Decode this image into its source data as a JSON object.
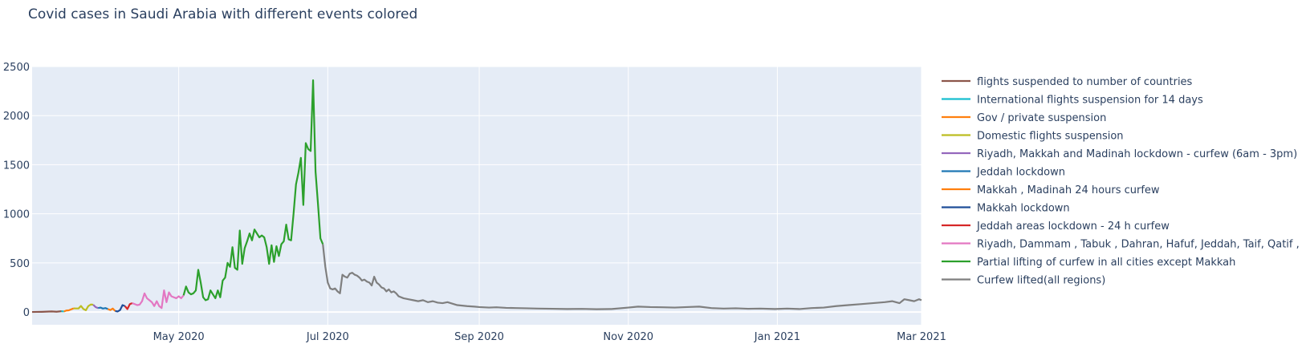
{
  "chart_data": {
    "type": "line",
    "title": "Covid cases in Saudi Arabia with different events colored",
    "xlabel": "",
    "ylabel": "",
    "ylim": [
      -130,
      2500
    ],
    "xlim": [
      "2020-03-02",
      "2021-03-01"
    ],
    "y_ticks": [
      0,
      500,
      1000,
      1500,
      2000,
      2500
    ],
    "x_ticks": [
      {
        "date": "2020-05-01",
        "label": "May 2020"
      },
      {
        "date": "2020-07-01",
        "label": "Jul 2020"
      },
      {
        "date": "2020-09-01",
        "label": "Sep 2020"
      },
      {
        "date": "2020-11-01",
        "label": "Nov 2020"
      },
      {
        "date": "2021-01-01",
        "label": "Jan 2021"
      },
      {
        "date": "2021-03-01",
        "label": "Mar 2021"
      }
    ],
    "grid": true,
    "legend_position": "right",
    "plot_background": "#E5ECF6",
    "series": [
      {
        "name": "flights suspended to number of countries",
        "color": "#8C564B",
        "points": [
          [
            "2020-03-02",
            0
          ],
          [
            "2020-03-04",
            1
          ],
          [
            "2020-03-06",
            2
          ],
          [
            "2020-03-08",
            4
          ],
          [
            "2020-03-10",
            6
          ],
          [
            "2020-03-12",
            3
          ],
          [
            "2020-03-14",
            8
          ]
        ]
      },
      {
        "name": "International flights suspension for 14 days",
        "color": "#17BECF",
        "points": [
          [
            "2020-03-14",
            8
          ],
          [
            "2020-03-15",
            5
          ]
        ]
      },
      {
        "name": "Gov / private suspension",
        "color": "#FF7F0E",
        "points": [
          [
            "2020-03-15",
            5
          ],
          [
            "2020-03-16",
            15
          ],
          [
            "2020-03-17",
            17
          ],
          [
            "2020-03-18",
            27
          ],
          [
            "2020-03-19",
            37
          ]
        ]
      },
      {
        "name": "Domestic flights suspension",
        "color": "#BCBD22",
        "points": [
          [
            "2020-03-19",
            37
          ],
          [
            "2020-03-20",
            36
          ],
          [
            "2020-03-21",
            36
          ],
          [
            "2020-03-22",
            62
          ],
          [
            "2020-03-23",
            30
          ],
          [
            "2020-03-24",
            18
          ],
          [
            "2020-03-25",
            60
          ],
          [
            "2020-03-26",
            76
          ],
          [
            "2020-03-27",
            74
          ]
        ]
      },
      {
        "name": "Riyadh, Makkah and Madinah lockdown - curfew (6am - 3pm)",
        "color": "#9467BD",
        "points": [
          [
            "2020-03-27",
            74
          ],
          [
            "2020-03-28",
            50
          ],
          [
            "2020-03-29",
            40
          ]
        ]
      },
      {
        "name": "Jeddah lockdown",
        "color": "#1F77B4",
        "points": [
          [
            "2020-03-29",
            40
          ],
          [
            "2020-03-30",
            45
          ],
          [
            "2020-03-31",
            35
          ],
          [
            "2020-04-01",
            40
          ],
          [
            "2020-04-02",
            30
          ]
        ]
      },
      {
        "name": "Makkah , Madinah 24 hours curfew",
        "color": "#FF7F0E",
        "points": [
          [
            "2020-04-02",
            30
          ],
          [
            "2020-04-03",
            20
          ],
          [
            "2020-04-04",
            35
          ],
          [
            "2020-04-05",
            10
          ]
        ]
      },
      {
        "name": "Makkah lockdown",
        "color": "#1F4E99",
        "points": [
          [
            "2020-04-05",
            10
          ],
          [
            "2020-04-06",
            5
          ],
          [
            "2020-04-07",
            20
          ],
          [
            "2020-04-08",
            70
          ],
          [
            "2020-04-09",
            60
          ]
        ]
      },
      {
        "name": "Jeddah areas lockdown - 24 h curfew",
        "color": "#D62728",
        "points": [
          [
            "2020-04-09",
            60
          ],
          [
            "2020-04-10",
            30
          ],
          [
            "2020-04-11",
            80
          ],
          [
            "2020-04-12",
            90
          ]
        ]
      },
      {
        "name": "Riyadh, Dammam , Tabuk , Dahran, Hafuf, Jeddah, Taif, Qatif ,",
        "color": "#E377C2",
        "points": [
          [
            "2020-04-12",
            90
          ],
          [
            "2020-04-13",
            80
          ],
          [
            "2020-04-14",
            70
          ],
          [
            "2020-04-15",
            75
          ],
          [
            "2020-04-16",
            110
          ],
          [
            "2020-04-17",
            190
          ],
          [
            "2020-04-18",
            140
          ],
          [
            "2020-04-19",
            120
          ],
          [
            "2020-04-20",
            100
          ],
          [
            "2020-04-21",
            60
          ],
          [
            "2020-04-22",
            110
          ],
          [
            "2020-04-23",
            60
          ],
          [
            "2020-04-24",
            40
          ],
          [
            "2020-04-25",
            220
          ],
          [
            "2020-04-26",
            100
          ],
          [
            "2020-04-27",
            200
          ],
          [
            "2020-04-28",
            160
          ],
          [
            "2020-04-29",
            150
          ],
          [
            "2020-04-30",
            140
          ],
          [
            "2020-05-01",
            160
          ],
          [
            "2020-05-02",
            140
          ],
          [
            "2020-05-03",
            170
          ]
        ]
      },
      {
        "name": "Partial lifting of curfew in all cities except Makkah",
        "color": "#2CA02C",
        "points": [
          [
            "2020-05-03",
            170
          ],
          [
            "2020-05-04",
            260
          ],
          [
            "2020-05-05",
            200
          ],
          [
            "2020-05-06",
            180
          ],
          [
            "2020-05-07",
            190
          ],
          [
            "2020-05-08",
            220
          ],
          [
            "2020-05-09",
            430
          ],
          [
            "2020-05-10",
            300
          ],
          [
            "2020-05-11",
            150
          ],
          [
            "2020-05-12",
            120
          ],
          [
            "2020-05-13",
            130
          ],
          [
            "2020-05-14",
            220
          ],
          [
            "2020-05-15",
            180
          ],
          [
            "2020-05-16",
            140
          ],
          [
            "2020-05-17",
            220
          ],
          [
            "2020-05-18",
            150
          ],
          [
            "2020-05-19",
            320
          ],
          [
            "2020-05-20",
            350
          ],
          [
            "2020-05-21",
            500
          ],
          [
            "2020-05-22",
            460
          ],
          [
            "2020-05-23",
            660
          ],
          [
            "2020-05-24",
            450
          ],
          [
            "2020-05-25",
            430
          ],
          [
            "2020-05-26",
            830
          ],
          [
            "2020-05-27",
            490
          ],
          [
            "2020-05-28",
            650
          ],
          [
            "2020-05-29",
            720
          ],
          [
            "2020-05-30",
            800
          ],
          [
            "2020-05-31",
            730
          ],
          [
            "2020-06-01",
            840
          ],
          [
            "2020-06-02",
            800
          ],
          [
            "2020-06-03",
            760
          ],
          [
            "2020-06-04",
            780
          ],
          [
            "2020-06-05",
            760
          ],
          [
            "2020-06-06",
            660
          ],
          [
            "2020-06-07",
            490
          ],
          [
            "2020-06-08",
            680
          ],
          [
            "2020-06-09",
            510
          ],
          [
            "2020-06-10",
            670
          ],
          [
            "2020-06-11",
            570
          ],
          [
            "2020-06-12",
            690
          ],
          [
            "2020-06-13",
            720
          ],
          [
            "2020-06-14",
            890
          ],
          [
            "2020-06-15",
            740
          ],
          [
            "2020-06-16",
            730
          ],
          [
            "2020-06-17",
            1000
          ],
          [
            "2020-06-18",
            1300
          ],
          [
            "2020-06-19",
            1420
          ],
          [
            "2020-06-20",
            1570
          ],
          [
            "2020-06-21",
            1090
          ],
          [
            "2020-06-22",
            1720
          ],
          [
            "2020-06-23",
            1660
          ],
          [
            "2020-06-24",
            1640
          ],
          [
            "2020-06-25",
            2360
          ],
          [
            "2020-06-26",
            1430
          ],
          [
            "2020-06-27",
            1100
          ],
          [
            "2020-06-28",
            750
          ],
          [
            "2020-06-29",
            690
          ]
        ]
      },
      {
        "name": "Curfew lifted(all regions)",
        "color": "#7F7F7F",
        "points": [
          [
            "2020-06-29",
            690
          ],
          [
            "2020-06-30",
            460
          ],
          [
            "2020-07-01",
            300
          ],
          [
            "2020-07-02",
            240
          ],
          [
            "2020-07-03",
            230
          ],
          [
            "2020-07-04",
            240
          ],
          [
            "2020-07-05",
            210
          ],
          [
            "2020-07-06",
            190
          ],
          [
            "2020-07-07",
            380
          ],
          [
            "2020-07-08",
            360
          ],
          [
            "2020-07-09",
            350
          ],
          [
            "2020-07-10",
            390
          ],
          [
            "2020-07-11",
            400
          ],
          [
            "2020-07-12",
            380
          ],
          [
            "2020-07-13",
            370
          ],
          [
            "2020-07-14",
            350
          ],
          [
            "2020-07-15",
            320
          ],
          [
            "2020-07-16",
            330
          ],
          [
            "2020-07-17",
            310
          ],
          [
            "2020-07-18",
            300
          ],
          [
            "2020-07-19",
            270
          ],
          [
            "2020-07-20",
            360
          ],
          [
            "2020-07-21",
            300
          ],
          [
            "2020-07-22",
            280
          ],
          [
            "2020-07-23",
            250
          ],
          [
            "2020-07-24",
            240
          ],
          [
            "2020-07-25",
            210
          ],
          [
            "2020-07-26",
            230
          ],
          [
            "2020-07-27",
            200
          ],
          [
            "2020-07-28",
            210
          ],
          [
            "2020-07-29",
            190
          ],
          [
            "2020-07-30",
            160
          ],
          [
            "2020-08-01",
            140
          ],
          [
            "2020-08-03",
            130
          ],
          [
            "2020-08-05",
            120
          ],
          [
            "2020-08-07",
            110
          ],
          [
            "2020-08-09",
            120
          ],
          [
            "2020-08-11",
            100
          ],
          [
            "2020-08-13",
            110
          ],
          [
            "2020-08-15",
            95
          ],
          [
            "2020-08-17",
            90
          ],
          [
            "2020-08-19",
            100
          ],
          [
            "2020-08-21",
            85
          ],
          [
            "2020-08-23",
            70
          ],
          [
            "2020-08-25",
            65
          ],
          [
            "2020-08-27",
            60
          ],
          [
            "2020-08-30",
            55
          ],
          [
            "2020-09-01",
            50
          ],
          [
            "2020-09-05",
            45
          ],
          [
            "2020-09-08",
            48
          ],
          [
            "2020-09-12",
            42
          ],
          [
            "2020-09-16",
            40
          ],
          [
            "2020-09-20",
            38
          ],
          [
            "2020-09-25",
            35
          ],
          [
            "2020-10-01",
            33
          ],
          [
            "2020-10-07",
            30
          ],
          [
            "2020-10-13",
            32
          ],
          [
            "2020-10-19",
            28
          ],
          [
            "2020-10-25",
            30
          ],
          [
            "2020-11-01",
            45
          ],
          [
            "2020-11-05",
            55
          ],
          [
            "2020-11-10",
            50
          ],
          [
            "2020-11-15",
            48
          ],
          [
            "2020-11-20",
            45
          ],
          [
            "2020-11-25",
            50
          ],
          [
            "2020-11-30",
            55
          ],
          [
            "2020-12-05",
            40
          ],
          [
            "2020-12-10",
            35
          ],
          [
            "2020-12-15",
            38
          ],
          [
            "2020-12-20",
            33
          ],
          [
            "2020-12-25",
            35
          ],
          [
            "2020-12-31",
            30
          ],
          [
            "2021-01-05",
            35
          ],
          [
            "2021-01-10",
            30
          ],
          [
            "2021-01-15",
            40
          ],
          [
            "2021-01-20",
            45
          ],
          [
            "2021-01-25",
            60
          ],
          [
            "2021-01-30",
            70
          ],
          [
            "2021-02-04",
            80
          ],
          [
            "2021-02-09",
            90
          ],
          [
            "2021-02-14",
            100
          ],
          [
            "2021-02-17",
            110
          ],
          [
            "2021-02-20",
            90
          ],
          [
            "2021-02-22",
            130
          ],
          [
            "2021-02-24",
            120
          ],
          [
            "2021-02-26",
            110
          ],
          [
            "2021-02-28",
            130
          ],
          [
            "2021-03-01",
            120
          ]
        ]
      }
    ]
  }
}
